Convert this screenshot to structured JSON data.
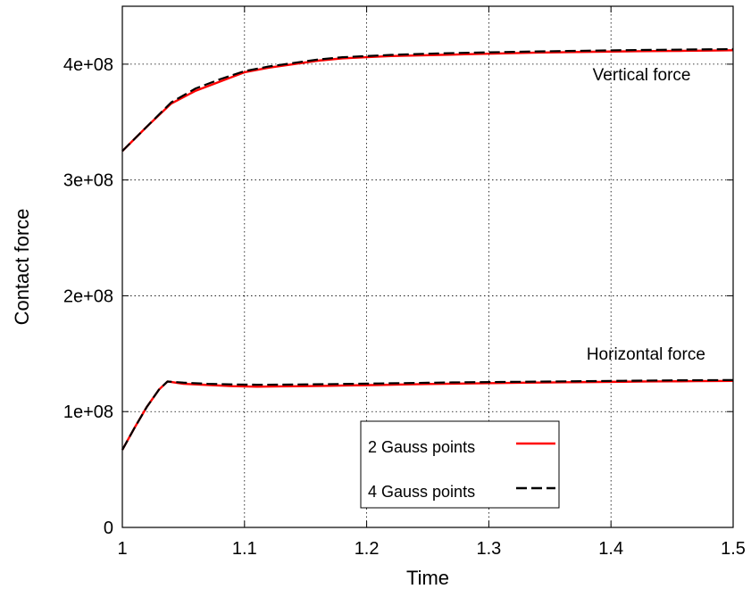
{
  "chart_data": {
    "type": "line",
    "title": "",
    "xlabel": "Time",
    "ylabel": "Contact force",
    "xlim": [
      1.0,
      1.5
    ],
    "ylim": [
      0,
      450000000
    ],
    "xticks": [
      1.0,
      1.1,
      1.2,
      1.3,
      1.4,
      1.5
    ],
    "xtick_labels": [
      "1",
      "1.1",
      "1.2",
      "1.3",
      "1.4",
      "1.5"
    ],
    "yticks": [
      0,
      100000000,
      200000000,
      300000000,
      400000000
    ],
    "ytick_labels": [
      "0",
      "1e+08",
      "2e+08",
      "3e+08",
      "4e+08"
    ],
    "grid": true,
    "legend_position": "bottom-center",
    "annotations": [
      {
        "text": "Vertical force",
        "x": 1.385,
        "y": 386000000
      },
      {
        "text": "Horizontal force",
        "x": 1.38,
        "y": 145000000
      }
    ],
    "series": [
      {
        "name": "2 Gauss points",
        "color": "#ff0000",
        "style": "solid",
        "group": "vertical",
        "x": [
          1.0,
          1.02,
          1.04,
          1.06,
          1.08,
          1.1,
          1.12,
          1.14,
          1.16,
          1.18,
          1.2,
          1.22,
          1.24,
          1.26,
          1.28,
          1.3,
          1.32,
          1.34,
          1.36,
          1.38,
          1.4,
          1.42,
          1.44,
          1.46,
          1.48,
          1.5
        ],
        "y": [
          325000000,
          346000000,
          366000000,
          377000000,
          385000000,
          393000000,
          397000000,
          400000000,
          403000000,
          405000000,
          406000000,
          407000000,
          407500000,
          408000000,
          408500000,
          409000000,
          409500000,
          410000000,
          410300000,
          410600000,
          410900000,
          411100000,
          411300000,
          411500000,
          411700000,
          412000000
        ]
      },
      {
        "name": "4 Gauss points",
        "color": "#000000",
        "style": "dashed",
        "group": "vertical",
        "x": [
          1.0,
          1.02,
          1.04,
          1.06,
          1.08,
          1.1,
          1.12,
          1.14,
          1.16,
          1.18,
          1.2,
          1.22,
          1.24,
          1.26,
          1.28,
          1.3,
          1.32,
          1.34,
          1.36,
          1.38,
          1.4,
          1.42,
          1.44,
          1.46,
          1.48,
          1.5
        ],
        "y": [
          325000000,
          346000000,
          367000000,
          379000000,
          387000000,
          394000000,
          398000000,
          401000000,
          404000000,
          406000000,
          407000000,
          408000000,
          408700000,
          409300000,
          409800000,
          410200000,
          410600000,
          411000000,
          411300000,
          411600000,
          411900000,
          412200000,
          412400000,
          412600000,
          412800000,
          413000000
        ]
      },
      {
        "name": "2 Gauss points",
        "color": "#ff0000",
        "style": "solid",
        "group": "horizontal",
        "x": [
          1.0,
          1.01,
          1.02,
          1.03,
          1.037,
          1.05,
          1.07,
          1.09,
          1.11,
          1.13,
          1.15,
          1.17,
          1.19,
          1.21,
          1.23,
          1.25,
          1.27,
          1.29,
          1.31,
          1.33,
          1.35,
          1.37,
          1.39,
          1.41,
          1.43,
          1.45,
          1.47,
          1.49,
          1.5
        ],
        "y": [
          67000000,
          86000000,
          104000000,
          119000000,
          126000000,
          124000000,
          123000000,
          122000000,
          121500000,
          121800000,
          122000000,
          122300000,
          122700000,
          123000000,
          123400000,
          123800000,
          124100000,
          124400000,
          124700000,
          125000000,
          125200000,
          125400000,
          125600000,
          125800000,
          126000000,
          126100000,
          126300000,
          126400000,
          126500000
        ]
      },
      {
        "name": "4 Gauss points",
        "color": "#000000",
        "style": "dashed",
        "group": "horizontal",
        "x": [
          1.0,
          1.01,
          1.02,
          1.03,
          1.037,
          1.05,
          1.07,
          1.09,
          1.11,
          1.13,
          1.15,
          1.17,
          1.19,
          1.21,
          1.23,
          1.25,
          1.27,
          1.29,
          1.31,
          1.33,
          1.35,
          1.37,
          1.39,
          1.41,
          1.43,
          1.45,
          1.47,
          1.49,
          1.5
        ],
        "y": [
          67000000,
          86000000,
          104000000,
          119000000,
          126000000,
          125000000,
          124000000,
          123500000,
          123200000,
          123300000,
          123500000,
          123700000,
          124000000,
          124300000,
          124600000,
          124900000,
          125200000,
          125400000,
          125600000,
          125800000,
          126000000,
          126200000,
          126400000,
          126600000,
          126800000,
          127000000,
          127100000,
          127200000,
          127300000
        ]
      }
    ],
    "legend": [
      {
        "label": "2 Gauss points",
        "color": "#ff0000",
        "style": "solid"
      },
      {
        "label": "4 Gauss points",
        "color": "#000000",
        "style": "dashed"
      }
    ]
  }
}
